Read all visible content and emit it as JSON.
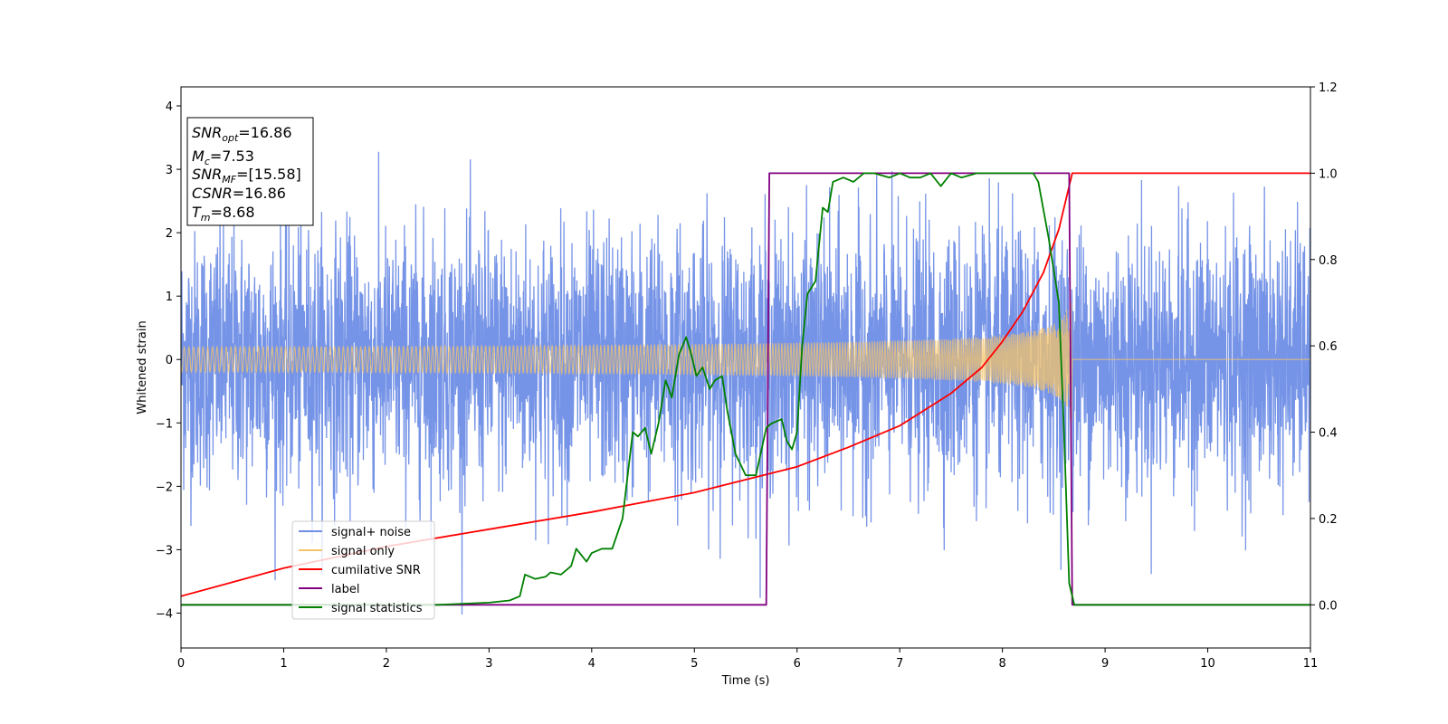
{
  "chart_data": {
    "type": "line",
    "xlabel": "Time (s)",
    "ylabel": "Whitened strain",
    "xlim": [
      0,
      11
    ],
    "ylim_left": [
      -4.55,
      4.3
    ],
    "ylim_right": [
      -0.1,
      1.2
    ],
    "x_ticks": [
      "0",
      "1",
      "2",
      "3",
      "4",
      "5",
      "6",
      "7",
      "8",
      "9",
      "10",
      "11"
    ],
    "y_left_ticks": [
      "4",
      "3",
      "2",
      "1",
      "0",
      "−1",
      "−2",
      "−3",
      "−4"
    ],
    "y_right_ticks": [
      "1.2",
      "1.0",
      "0.8",
      "0.6",
      "0.4",
      "0.2",
      "0.0"
    ],
    "grid": false,
    "legend_position": "lower-left",
    "legend": [
      {
        "label": "signal+ noise",
        "color": "#6f8ee6"
      },
      {
        "label": "signal only",
        "color": "#f5c46a"
      },
      {
        "label": "cumilative SNR",
        "color": "#ff0000"
      },
      {
        "label": "label",
        "color": "#800080"
      },
      {
        "label": "signal statistics",
        "color": "#008000"
      }
    ],
    "annotation": {
      "snr_opt": {
        "name": "SNR",
        "sub": "opt",
        "value": "=16.86"
      },
      "mc": {
        "name": "M",
        "sub": "c",
        "value": "=7.53"
      },
      "snr_mf": {
        "name": "SNR",
        "sub": "MF",
        "value": "=[15.58]"
      },
      "csnr": {
        "name": "CSNR",
        "value": "=16.86"
      },
      "tm": {
        "name": "T",
        "sub": "m",
        "value": "=8.68"
      }
    },
    "series": [
      {
        "name": "signal+ noise",
        "axis": "left",
        "kind": "noise",
        "color": "#6f8ee6",
        "sigma": 1.0,
        "x_range": [
          0,
          11
        ]
      },
      {
        "name": "signal only",
        "axis": "left",
        "kind": "chirp",
        "color": "#f5c46a",
        "amplitude_start": 0.06,
        "amplitude_end": 1.2,
        "t_merge": 8.68
      },
      {
        "name": "cumilative SNR",
        "axis": "right",
        "x": [
          0,
          1,
          2,
          3,
          4,
          5,
          5.5,
          6,
          6.5,
          7,
          7.5,
          7.8,
          8.0,
          8.2,
          8.4,
          8.55,
          8.68,
          11
        ],
        "y": [
          0.02,
          0.085,
          0.135,
          0.175,
          0.215,
          0.26,
          0.29,
          0.32,
          0.365,
          0.415,
          0.49,
          0.55,
          0.61,
          0.68,
          0.77,
          0.87,
          1.0,
          1.0
        ],
        "color": "#ff0000"
      },
      {
        "name": "label",
        "axis": "right",
        "x": [
          0,
          5.7,
          5.73,
          8.65,
          8.68,
          11
        ],
        "y": [
          0,
          0,
          1,
          1,
          0,
          0
        ],
        "color": "#800080"
      },
      {
        "name": "signal statistics",
        "axis": "right",
        "x": [
          0,
          1,
          2,
          2.5,
          3,
          3.2,
          3.3,
          3.35,
          3.45,
          3.55,
          3.6,
          3.7,
          3.8,
          3.85,
          3.95,
          4.0,
          4.1,
          4.2,
          4.3,
          4.4,
          4.45,
          4.52,
          4.58,
          4.65,
          4.72,
          4.78,
          4.85,
          4.92,
          4.97,
          5.02,
          5.08,
          5.15,
          5.2,
          5.27,
          5.32,
          5.4,
          5.5,
          5.6,
          5.7,
          5.75,
          5.85,
          5.9,
          5.95,
          6.0,
          6.05,
          6.1,
          6.18,
          6.25,
          6.3,
          6.35,
          6.45,
          6.55,
          6.65,
          6.75,
          6.9,
          7.0,
          7.1,
          7.2,
          7.3,
          7.4,
          7.5,
          7.6,
          7.75,
          8.0,
          8.3,
          8.35,
          8.45,
          8.55,
          8.6,
          8.65,
          8.7,
          11
        ],
        "y": [
          0,
          0,
          0,
          0,
          0.005,
          0.01,
          0.02,
          0.07,
          0.06,
          0.065,
          0.075,
          0.07,
          0.09,
          0.13,
          0.1,
          0.12,
          0.13,
          0.13,
          0.2,
          0.4,
          0.39,
          0.41,
          0.35,
          0.42,
          0.52,
          0.48,
          0.58,
          0.62,
          0.58,
          0.53,
          0.55,
          0.5,
          0.52,
          0.53,
          0.45,
          0.35,
          0.3,
          0.3,
          0.41,
          0.42,
          0.43,
          0.38,
          0.36,
          0.4,
          0.6,
          0.72,
          0.75,
          0.92,
          0.91,
          0.98,
          0.99,
          0.98,
          1.0,
          1.0,
          0.99,
          1.0,
          0.99,
          0.99,
          1.0,
          0.97,
          1.0,
          0.99,
          1.0,
          1.0,
          1.0,
          0.98,
          0.85,
          0.7,
          0.4,
          0.05,
          0,
          0
        ],
        "color": "#008000"
      }
    ]
  }
}
